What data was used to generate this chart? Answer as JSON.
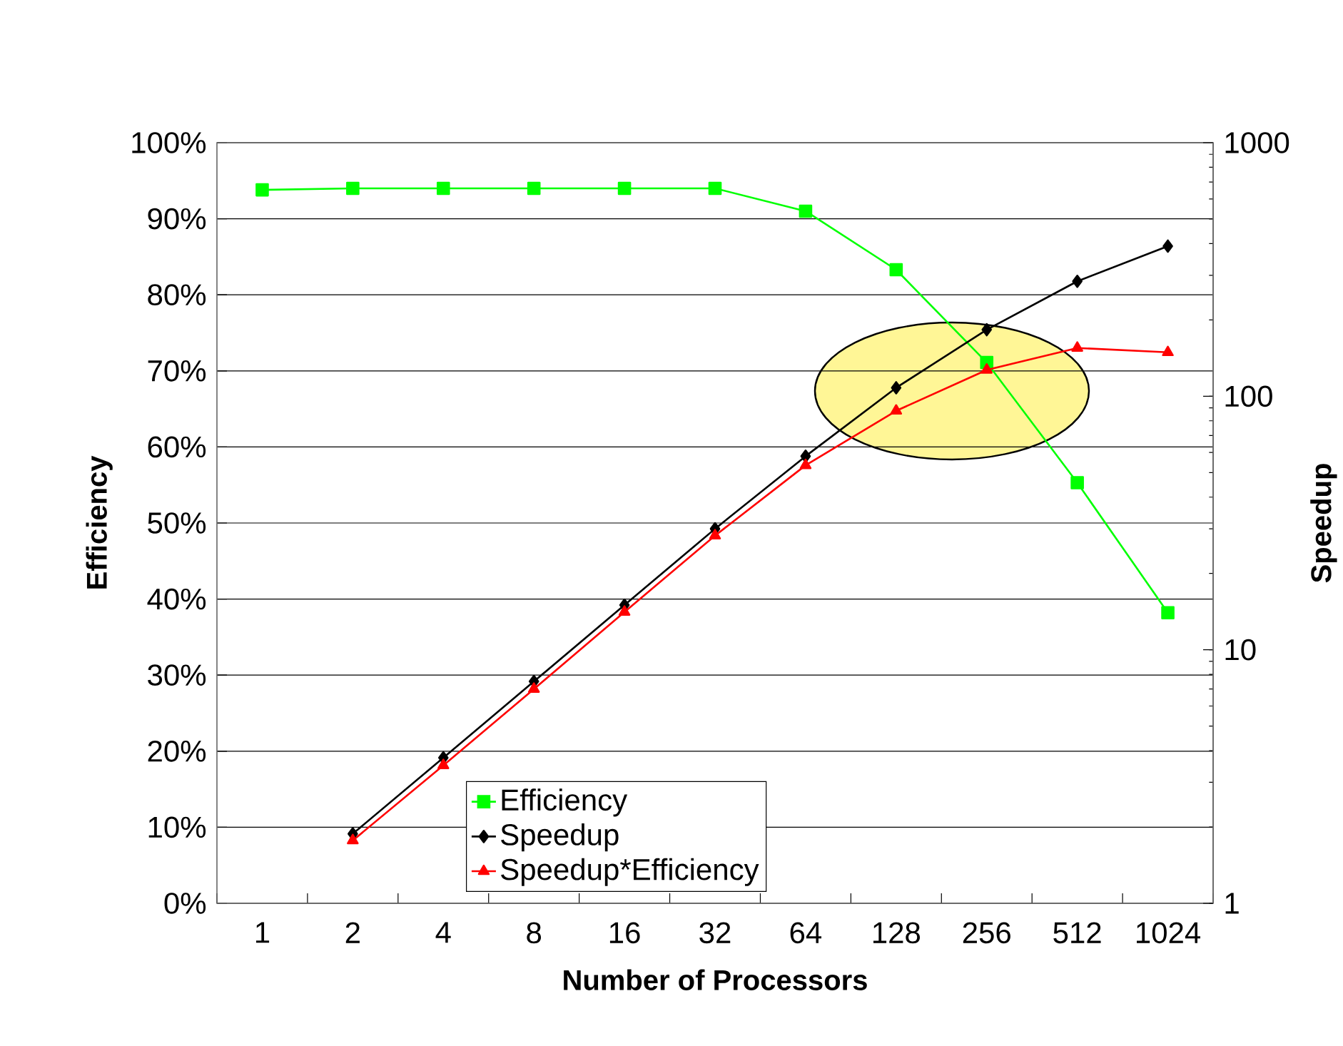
{
  "chart_data": {
    "type": "line",
    "xlabel": "Number of Processors",
    "ylabel": "Efficiency",
    "y2label": "Speedup",
    "categories": [
      "1",
      "2",
      "4",
      "8",
      "16",
      "32",
      "64",
      "128",
      "256",
      "512",
      "1024"
    ],
    "series": [
      {
        "name": "Efficiency",
        "color": "#00ff00",
        "marker": "square",
        "values": [
          93.8,
          94,
          94,
          94,
          94,
          94,
          91,
          83.3,
          71.1,
          55.3,
          38.2
        ]
      },
      {
        "name": "Speedup",
        "color": "#000000",
        "marker": "diamond",
        "axis": "y2",
        "values": [
          null,
          1.88,
          3.75,
          7.5,
          15,
          30,
          58,
          108,
          183,
          284,
          391
        ]
      },
      {
        "name": "Speedup*Efficiency",
        "color": "#ff0000",
        "marker": "triangle",
        "axis": "y2",
        "values": [
          null,
          1.77,
          3.5,
          7.0,
          14.1,
          28.2,
          53.4,
          87.6,
          127,
          155,
          149
        ]
      }
    ],
    "ylim": [
      0,
      100
    ],
    "yticks": [
      {
        "value": 0,
        "label": "0%"
      },
      {
        "value": 10,
        "label": "10%"
      },
      {
        "value": 20,
        "label": "20%"
      },
      {
        "value": 30,
        "label": "30%"
      },
      {
        "value": 40,
        "label": "40%"
      },
      {
        "value": 50,
        "label": "50%"
      },
      {
        "value": 60,
        "label": "60%"
      },
      {
        "value": 70,
        "label": "70%"
      },
      {
        "value": 80,
        "label": "80%"
      },
      {
        "value": 90,
        "label": "90%"
      },
      {
        "value": 100,
        "label": "100%"
      }
    ],
    "y2lim": [
      1,
      1000
    ],
    "y2ticks": [
      1,
      10,
      100,
      1000
    ],
    "log": "y2",
    "grid": "y",
    "legend": "bottom"
  }
}
